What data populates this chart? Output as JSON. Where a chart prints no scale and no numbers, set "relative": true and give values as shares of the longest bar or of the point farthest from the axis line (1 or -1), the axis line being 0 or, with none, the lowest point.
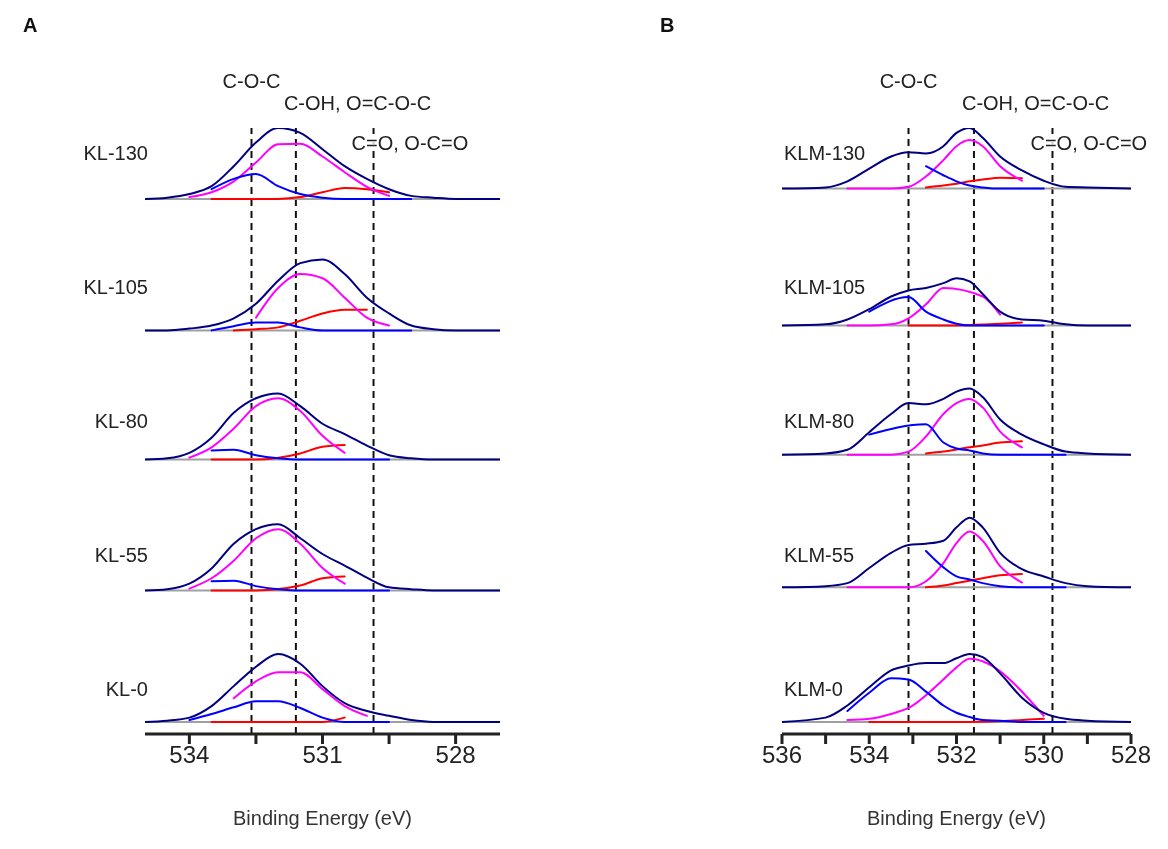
{
  "chart_data": [
    {
      "type": "line",
      "title": "A",
      "xlabel": "Binding Energy (eV)",
      "relative": true,
      "xlim": [
        535,
        527
      ],
      "xticks": [
        534,
        {
          "value": 532.5,
          "label": null
        },
        531,
        {
          "value": 529.5,
          "label": null
        },
        528
      ],
      "x": [
        535,
        534.5,
        534,
        533.5,
        533,
        532.5,
        532,
        531.5,
        531,
        530.5,
        530,
        529.5,
        529,
        528.5,
        528,
        527.5,
        527
      ],
      "ref_lines": [
        {
          "axis": "x",
          "value": 532.6,
          "label": "C-O-C",
          "line_style": "dashed"
        },
        {
          "axis": "x",
          "value": 531.6,
          "label": "C-OH, O=C-O-C",
          "line_style": "dashed"
        },
        {
          "axis": "x",
          "value": 529.85,
          "label": "C=O, O-C=O",
          "line_style": "dashed"
        },
        {
          "axis": "y",
          "value": 0.883,
          "color": "#a0a0a0",
          "line_style": "solid"
        },
        {
          "axis": "y",
          "value": 0.666,
          "color": "#a0a0a0",
          "line_style": "solid"
        },
        {
          "axis": "y",
          "value": 0.453,
          "color": "#a0a0a0",
          "line_style": "solid"
        },
        {
          "axis": "y",
          "value": 0.237,
          "color": "#a0a0a0",
          "line_style": "solid"
        },
        {
          "axis": "y",
          "value": 0.02,
          "color": "#a0a0a0",
          "line_style": "solid"
        }
      ],
      "annotations": [
        "KL-130",
        "KL-105",
        "KL-80",
        "KL-55",
        "KL-0"
      ],
      "series": [
        {
          "color": "#ff0000",
          "values": [
            null,
            null,
            null,
            0.883,
            0.883,
            0.883,
            0.883,
            0.886,
            0.894,
            0.901,
            0.899,
            0.894,
            null,
            null,
            null,
            null,
            null
          ]
        },
        {
          "color": "#ff00ff",
          "values": [
            null,
            null,
            0.886,
            0.894,
            0.912,
            0.943,
            0.973,
            0.974,
            0.953,
            0.927,
            0.903,
            0.888,
            null,
            null,
            null,
            null,
            null
          ]
        },
        {
          "color": "#0000ff",
          "values": [
            null,
            null,
            null,
            0.899,
            0.916,
            0.924,
            0.904,
            0.891,
            0.885,
            0.883,
            0.883,
            0.883,
            0.883,
            null,
            null,
            null,
            null
          ]
        },
        {
          "color": "#000080",
          "values": [
            0.883,
            0.885,
            0.891,
            0.904,
            0.937,
            0.976,
            1,
            0.992,
            0.965,
            0.937,
            0.916,
            0.899,
            0.888,
            0.885,
            0.883,
            0.883,
            0.883
          ]
        },
        {
          "color": "#ff0000",
          "values": [
            null,
            null,
            null,
            null,
            0.666,
            0.668,
            0.671,
            0.682,
            0.694,
            0.7,
            0.7,
            null,
            null,
            null,
            null,
            null,
            null
          ]
        },
        {
          "color": "#ff00ff",
          "values": [
            null,
            null,
            null,
            null,
            null,
            0.687,
            0.736,
            0.759,
            0.752,
            0.72,
            0.687,
            0.674,
            null,
            null,
            null,
            null,
            null
          ]
        },
        {
          "color": "#0000ff",
          "values": [
            null,
            null,
            null,
            0.666,
            0.673,
            0.679,
            0.679,
            0.671,
            0.666,
            0.666,
            0.666,
            0.666,
            0.666,
            null,
            null,
            null,
            null
          ]
        },
        {
          "color": "#000080",
          "values": [
            0.666,
            0.666,
            0.669,
            0.674,
            0.686,
            0.71,
            0.748,
            0.777,
            0.783,
            0.759,
            0.72,
            0.694,
            0.674,
            0.668,
            0.666,
            0.666,
            0.666
          ]
        },
        {
          "color": "#ff0000",
          "values": [
            null,
            null,
            null,
            0.453,
            0.453,
            0.453,
            null,
            0.463,
            0.474,
            0.477,
            null,
            null,
            null,
            null,
            null,
            null,
            null
          ]
        },
        {
          "color": "#ff00ff",
          "values": [
            null,
            null,
            0.456,
            0.473,
            0.504,
            0.541,
            0.554,
            0.533,
            0.492,
            0.464,
            null,
            null,
            null,
            null,
            null,
            null,
            null
          ]
        },
        {
          "color": "#0000ff",
          "values": [
            null,
            null,
            null,
            0.468,
            0.469,
            0.46,
            0.455,
            0.453,
            0.453,
            0.453,
            0.453,
            0.453,
            null,
            null,
            null,
            null,
            null
          ]
        },
        {
          "color": "#000080",
          "values": [
            0.453,
            0.455,
            0.464,
            0.489,
            0.53,
            0.554,
            0.562,
            0.541,
            0.512,
            0.495,
            0.476,
            0.46,
            0.455,
            0.453,
            0.453,
            0.453,
            0.453
          ]
        },
        {
          "color": "#ff0000",
          "values": [
            null,
            null,
            null,
            0.237,
            0.237,
            0.237,
            null,
            0.245,
            0.257,
            0.26,
            null,
            null,
            null,
            null,
            null,
            null,
            null
          ]
        },
        {
          "color": "#ff00ff",
          "values": [
            null,
            null,
            0.24,
            0.257,
            0.286,
            0.323,
            0.338,
            0.314,
            0.274,
            0.248,
            null,
            null,
            null,
            null,
            null,
            null,
            null
          ]
        },
        {
          "color": "#0000ff",
          "values": [
            null,
            null,
            null,
            0.252,
            0.253,
            0.244,
            0.239,
            0.237,
            0.237,
            0.237,
            0.237,
            0.237,
            null,
            null,
            null,
            null,
            null
          ]
        },
        {
          "color": "#000080",
          "values": [
            0.237,
            0.239,
            0.248,
            0.273,
            0.314,
            0.338,
            0.346,
            0.323,
            0.297,
            0.278,
            0.258,
            0.242,
            0.239,
            0.237,
            0.237,
            0.237,
            0.237
          ]
        },
        {
          "color": "#ff0000",
          "values": [
            null,
            null,
            null,
            0.02,
            0.02,
            0.02,
            0.02,
            0.02,
            0.02,
            0.027,
            null,
            null,
            null,
            null,
            null,
            null,
            null
          ]
        },
        {
          "color": "#ff00ff",
          "values": [
            null,
            null,
            null,
            null,
            0.059,
            0.087,
            0.102,
            0.102,
            0.074,
            0.046,
            0.03,
            null,
            null,
            null,
            null,
            null,
            null
          ]
        },
        {
          "color": "#0000ff",
          "values": [
            null,
            null,
            0.023,
            0.033,
            0.044,
            0.054,
            0.054,
            0.043,
            0.027,
            0.02,
            0.02,
            0.02,
            null,
            null,
            null,
            null,
            null
          ]
        },
        {
          "color": "#000080",
          "values": [
            0.02,
            0.022,
            0.027,
            0.046,
            0.079,
            0.111,
            0.132,
            0.116,
            0.079,
            0.051,
            0.038,
            0.03,
            0.023,
            0.02,
            0.02,
            0.02,
            0.02
          ]
        }
      ]
    },
    {
      "type": "line",
      "title": "B",
      "xlabel": "Binding Energy (eV)",
      "relative": true,
      "xlim": [
        536,
        528
      ],
      "xticks": [
        536,
        {
          "value": 535,
          "label": null
        },
        534,
        {
          "value": 533,
          "label": null
        },
        532,
        {
          "value": 531,
          "label": null
        },
        530,
        {
          "value": 529,
          "label": null
        },
        528
      ],
      "x": [
        536,
        535,
        534.5,
        534,
        533.5,
        533.1,
        532.7,
        532.3,
        532,
        531.7,
        531.4,
        531,
        530.5,
        530,
        529.5,
        529,
        528
      ],
      "ref_lines": [
        {
          "axis": "x",
          "value": 533.1,
          "label": "C-O-C",
          "line_style": "dashed"
        },
        {
          "axis": "x",
          "value": 531.6,
          "label": "C-OH, O=C-O-C",
          "line_style": "dashed"
        },
        {
          "axis": "x",
          "value": 529.8,
          "label": "C=O, O-C=O",
          "line_style": "dashed"
        },
        {
          "axis": "y",
          "value": 0.9,
          "color": "#a0a0a0",
          "line_style": "solid"
        },
        {
          "axis": "y",
          "value": 0.674,
          "color": "#a0a0a0",
          "line_style": "solid"
        },
        {
          "axis": "y",
          "value": 0.461,
          "color": "#a0a0a0",
          "line_style": "solid"
        },
        {
          "axis": "y",
          "value": 0.242,
          "color": "#a0a0a0",
          "line_style": "solid"
        },
        {
          "axis": "y",
          "value": 0.02,
          "color": "#a0a0a0",
          "line_style": "solid"
        }
      ],
      "annotations": [
        "KLM-130",
        "KLM-105",
        "KLM-80",
        "KLM-55",
        "KLM-0"
      ],
      "series": [
        {
          "color": "#ff0000",
          "values": [
            null,
            null,
            null,
            null,
            null,
            null,
            0.902,
            0.905,
            0.908,
            0.912,
            0.915,
            0.918,
            0.917,
            null,
            null,
            null,
            null
          ]
        },
        {
          "color": "#ff00ff",
          "values": [
            null,
            null,
            0.9,
            0.9,
            0.9,
            0.903,
            0.92,
            0.947,
            0.97,
            0.98,
            0.97,
            0.937,
            0.913,
            null,
            null,
            null,
            null
          ]
        },
        {
          "color": "#0000ff",
          "values": [
            null,
            null,
            null,
            null,
            null,
            null,
            0.937,
            0.922,
            0.912,
            0.905,
            0.902,
            0.9,
            0.9,
            0.9,
            null,
            null,
            null
          ]
        },
        {
          "color": "#000080",
          "values": [
            0.9,
            0.902,
            0.912,
            0.933,
            0.953,
            0.96,
            0.958,
            0.97,
            0.992,
            1,
            0.984,
            0.953,
            0.93,
            0.913,
            0.903,
            0.902,
            0.9
          ]
        },
        {
          "color": "#ff0000",
          "values": [
            null,
            null,
            null,
            null,
            null,
            0.674,
            0.674,
            0.674,
            null,
            null,
            null,
            null,
            0.679,
            null,
            null,
            null,
            null
          ]
        },
        {
          "color": "#ff00ff",
          "values": [
            null,
            null,
            0.674,
            0.674,
            0.676,
            0.686,
            0.709,
            0.736,
            null,
            null,
            0.722,
            0.692,
            null,
            null,
            null,
            null,
            null
          ]
        },
        {
          "color": "#0000ff",
          "values": [
            null,
            null,
            null,
            0.697,
            null,
            0.721,
            0.697,
            0.684,
            0.677,
            0.674,
            0.674,
            0.674,
            0.674,
            0.674,
            null,
            null,
            null
          ]
        },
        {
          "color": "#000080",
          "values": [
            0.674,
            0.676,
            0.684,
            0.701,
            0.722,
            0.732,
            0.736,
            0.744,
            0.752,
            0.747,
            0.726,
            0.697,
            0.684,
            0.682,
            0.676,
            0.674,
            0.674
          ]
        },
        {
          "color": "#ff0000",
          "values": [
            null,
            null,
            null,
            null,
            null,
            null,
            0.463,
            0.466,
            null,
            0.473,
            0.476,
            0.481,
            0.483,
            null,
            null,
            null,
            null
          ]
        },
        {
          "color": "#ff00ff",
          "values": [
            null,
            null,
            0.461,
            0.461,
            0.461,
            0.466,
            0.491,
            0.528,
            0.546,
            0.553,
            0.539,
            0.499,
            0.473,
            null,
            null,
            null,
            null
          ]
        },
        {
          "color": "#0000ff",
          "values": [
            null,
            null,
            null,
            0.494,
            null,
            null,
            0.511,
            0.481,
            0.471,
            0.468,
            0.463,
            0.461,
            0.461,
            0.461,
            0.461,
            null,
            null
          ]
        },
        {
          "color": "#000080",
          "values": [
            0.461,
            0.463,
            0.469,
            0.498,
            0.528,
            0.546,
            0.544,
            0.553,
            0.565,
            0.57,
            0.556,
            0.519,
            0.494,
            0.478,
            0.466,
            0.463,
            0.461
          ]
        },
        {
          "color": "#ff0000",
          "values": [
            null,
            null,
            null,
            null,
            null,
            null,
            0.242,
            0.245,
            0.249,
            null,
            0.257,
            0.262,
            0.264,
            null,
            null,
            null,
            null
          ]
        },
        {
          "color": "#ff00ff",
          "values": [
            null,
            null,
            0.242,
            0.242,
            0.242,
            0.242,
            0.252,
            0.282,
            0.315,
            0.334,
            0.319,
            0.277,
            0.25,
            null,
            null,
            null,
            null
          ]
        },
        {
          "color": "#0000ff",
          "values": [
            null,
            null,
            null,
            null,
            null,
            null,
            0.302,
            0.275,
            0.26,
            0.255,
            0.249,
            0.244,
            0.242,
            0.242,
            0.242,
            null,
            null
          ]
        },
        {
          "color": "#000080",
          "values": [
            0.242,
            0.244,
            0.249,
            0.274,
            0.299,
            0.312,
            0.314,
            0.319,
            0.341,
            0.357,
            0.341,
            0.299,
            0.272,
            0.26,
            0.249,
            0.244,
            0.242
          ]
        },
        {
          "color": "#ff0000",
          "values": [
            null,
            null,
            null,
            0.02,
            0.02,
            0.02,
            0.02,
            0.02,
            0.02,
            0.02,
            null,
            null,
            null,
            0.025,
            null,
            null,
            null
          ]
        },
        {
          "color": "#ff00ff",
          "values": [
            null,
            null,
            0.023,
            0.025,
            0.033,
            0.043,
            null,
            0.09,
            0.11,
            0.124,
            null,
            null,
            null,
            0.03,
            null,
            null,
            null
          ]
        },
        {
          "color": "#0000ff",
          "values": [
            null,
            null,
            0.038,
            0.068,
            0.092,
            0.09,
            0.07,
            0.047,
            0.035,
            0.028,
            0.023,
            0.022,
            0.02,
            0.02,
            0.02,
            null,
            null
          ]
        },
        {
          "color": "#000080",
          "values": [
            0.02,
            0.027,
            0.047,
            0.077,
            0.105,
            0.113,
            0.117,
            0.117,
            0.125,
            0.132,
            0.127,
            0.1,
            0.06,
            0.035,
            0.025,
            0.022,
            0.02
          ]
        }
      ]
    }
  ]
}
